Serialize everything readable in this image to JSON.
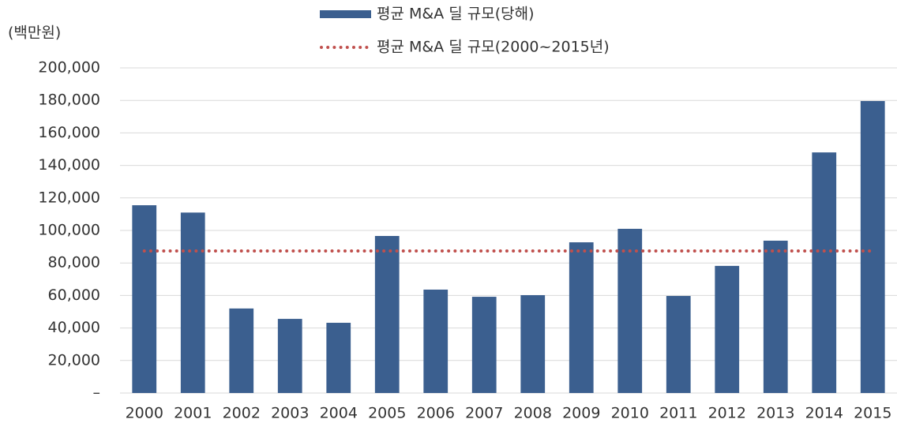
{
  "chart_data": {
    "type": "bar",
    "y_axis_label": "(백만원)",
    "categories": [
      "2000",
      "2001",
      "2002",
      "2003",
      "2004",
      "2005",
      "2006",
      "2007",
      "2008",
      "2009",
      "2010",
      "2011",
      "2012",
      "2013",
      "2014",
      "2015"
    ],
    "series": [
      {
        "name": "평균 M&A 딜 규모(당해)",
        "type": "bar",
        "color": "#3b5f8f",
        "values": [
          115500,
          111000,
          52000,
          45600,
          43200,
          96600,
          63600,
          59200,
          60200,
          92700,
          101000,
          59700,
          78200,
          93700,
          148000,
          179600
        ]
      },
      {
        "name": "평균 M&A 딜 규모(2000~2015년)",
        "type": "line",
        "color": "#c0504d",
        "dotted": true,
        "values": [
          87400,
          87400,
          87400,
          87400,
          87400,
          87400,
          87400,
          87400,
          87400,
          87400,
          87400,
          87400,
          87400,
          87400,
          87400,
          87400
        ]
      }
    ],
    "ylim": [
      0,
      200000
    ],
    "yticks": [
      {
        "value": 0,
        "label": "–"
      },
      {
        "value": 20000,
        "label": "20,000"
      },
      {
        "value": 40000,
        "label": "40,000"
      },
      {
        "value": 60000,
        "label": "60,000"
      },
      {
        "value": 80000,
        "label": "80,000"
      },
      {
        "value": 100000,
        "label": "100,000"
      },
      {
        "value": 120000,
        "label": "120,000"
      },
      {
        "value": 140000,
        "label": "140,000"
      },
      {
        "value": 160000,
        "label": "160,000"
      },
      {
        "value": 180000,
        "label": "180,000"
      },
      {
        "value": 200000,
        "label": "200,000"
      }
    ],
    "grid": true,
    "legend": "top"
  }
}
